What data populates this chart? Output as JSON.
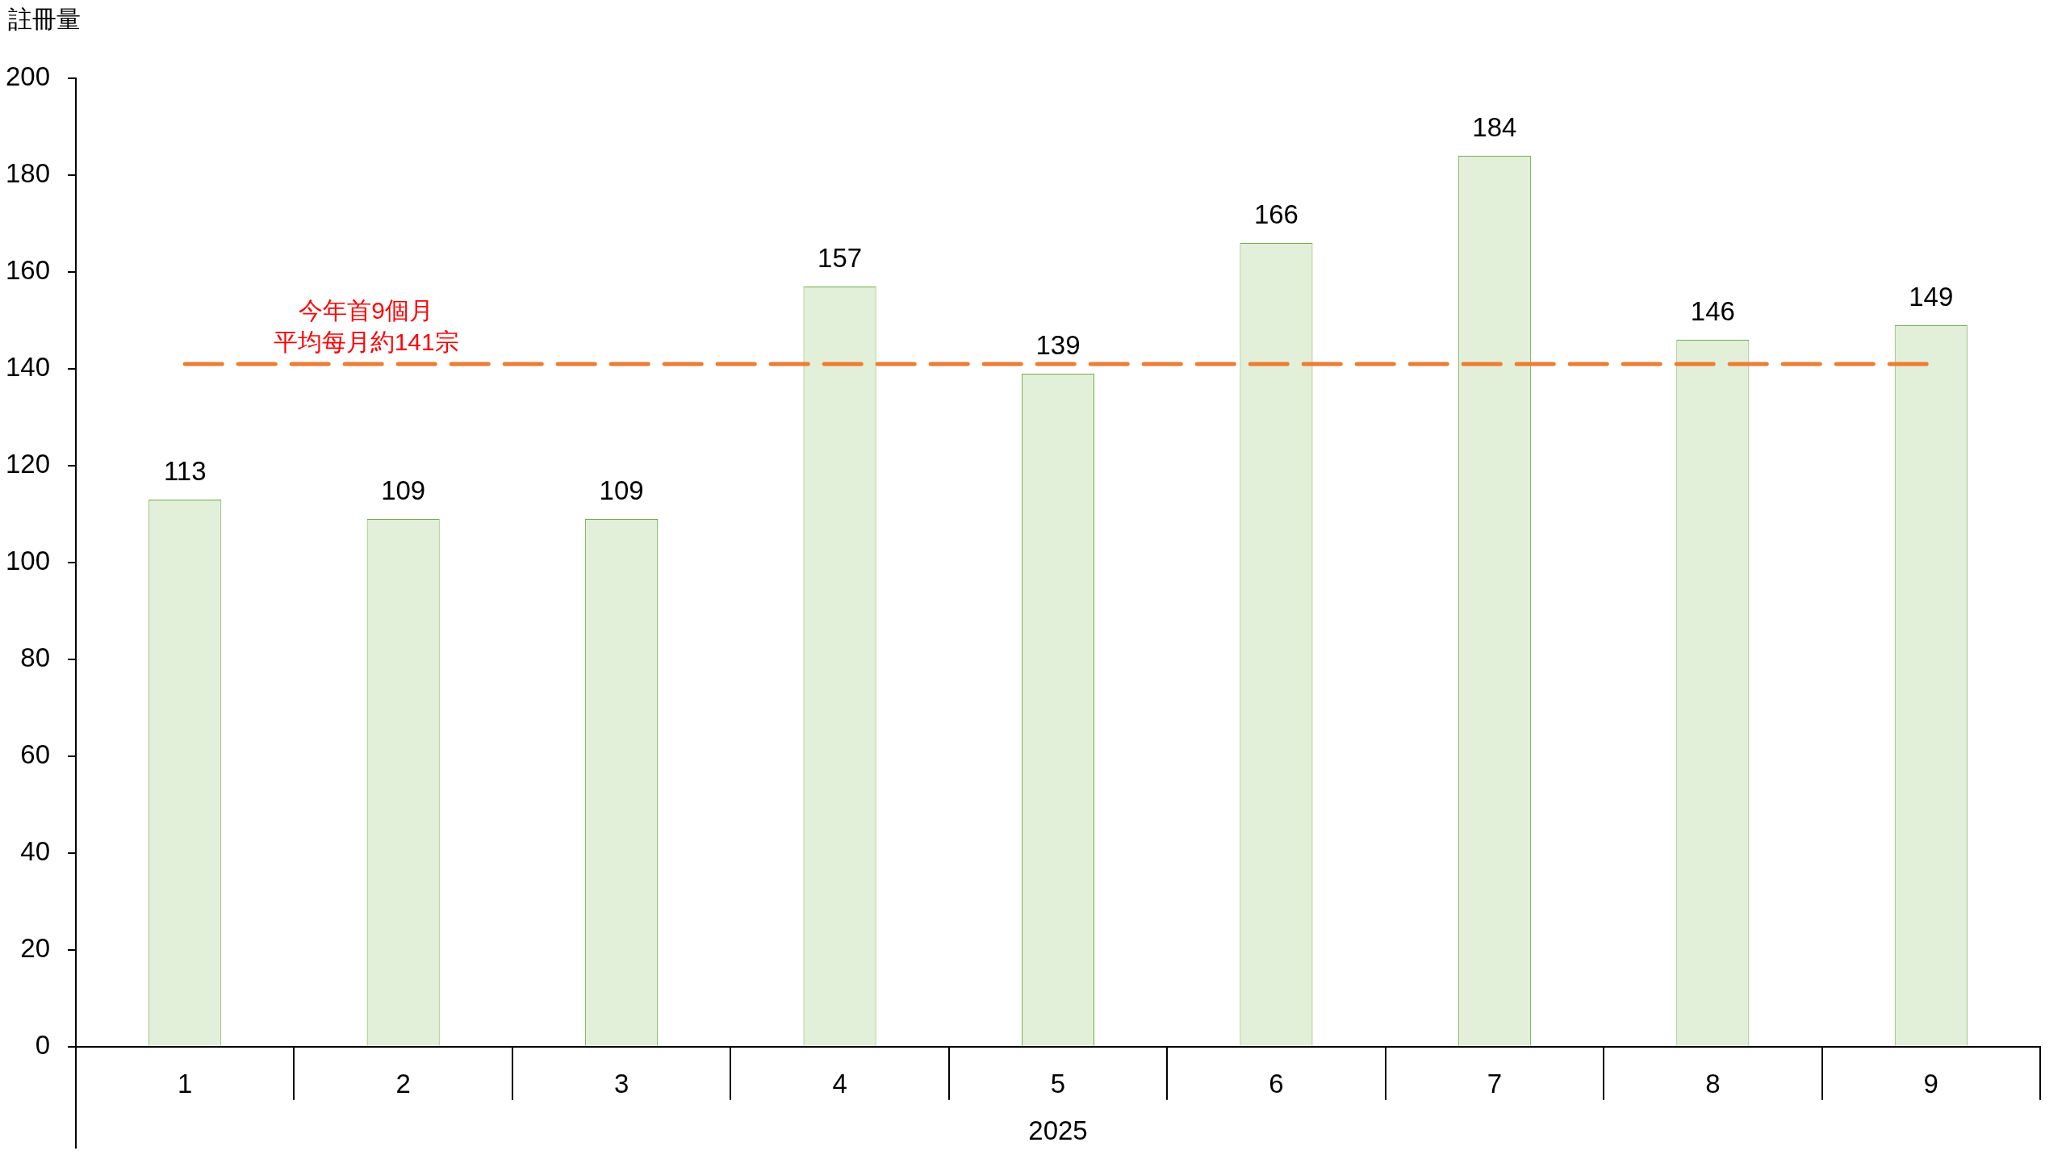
{
  "chart_data": {
    "type": "bar",
    "ylabel": "註冊量",
    "xlabel": "2025",
    "categories": [
      "1",
      "2",
      "3",
      "4",
      "5",
      "6",
      "7",
      "8",
      "9"
    ],
    "values": [
      113,
      109,
      109,
      157,
      139,
      166,
      184,
      146,
      149
    ],
    "color": "#e2efd9",
    "ylim": [
      0,
      200
    ],
    "yticks": [
      0,
      20,
      40,
      60,
      80,
      100,
      120,
      140,
      160,
      180,
      200
    ],
    "grid": false,
    "legend": false,
    "data_labels": true,
    "ref_lines": [
      {
        "axis": "y",
        "value": 141,
        "label": "今年首9個月平均每月約141宗",
        "color": "#ed7d31",
        "line_style": "dashed"
      }
    ]
  }
}
